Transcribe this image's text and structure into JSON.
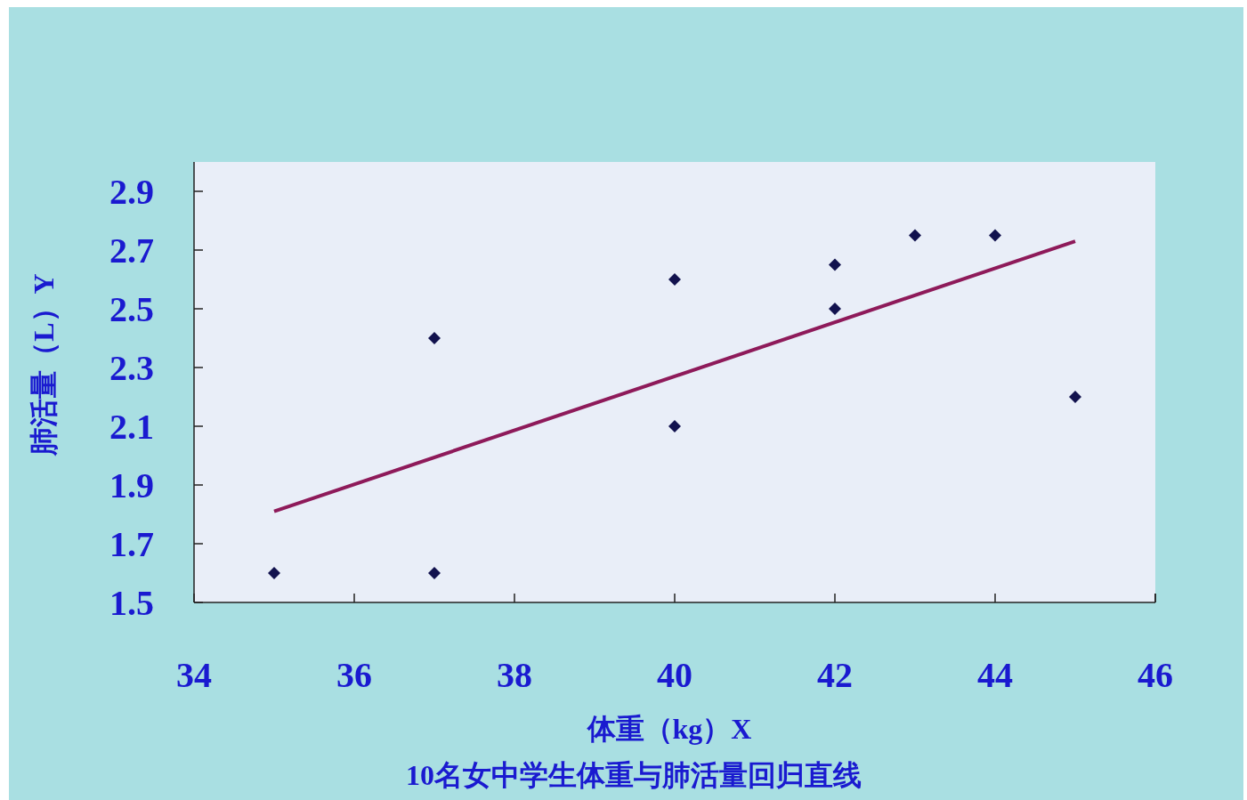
{
  "chart_data": {
    "type": "scatter",
    "title": "10名女中学生体重与肺活量回归直线",
    "xlabel": "体重（kg）X",
    "ylabel": "肺活量（L）Y",
    "xlim": [
      34,
      46
    ],
    "xticks": [
      34,
      36,
      38,
      40,
      42,
      44,
      46
    ],
    "ylim": [
      1.5,
      3.0
    ],
    "yticks": [
      1.5,
      1.7,
      1.9,
      2.1,
      2.3,
      2.5,
      2.7,
      2.9
    ],
    "grid": false,
    "series": [
      {
        "marker": "diamond",
        "color": "#12124e",
        "x": [
          35,
          37,
          37,
          40,
          40,
          42,
          42,
          43,
          44,
          45
        ],
        "values": [
          1.6,
          2.4,
          1.6,
          2.6,
          2.1,
          2.65,
          2.5,
          2.75,
          2.75,
          2.2
        ]
      },
      {
        "type": "line",
        "marker": "none",
        "color": "#8e1a5a",
        "x": [
          35,
          45
        ],
        "values": [
          1.81,
          2.73
        ]
      }
    ]
  }
}
